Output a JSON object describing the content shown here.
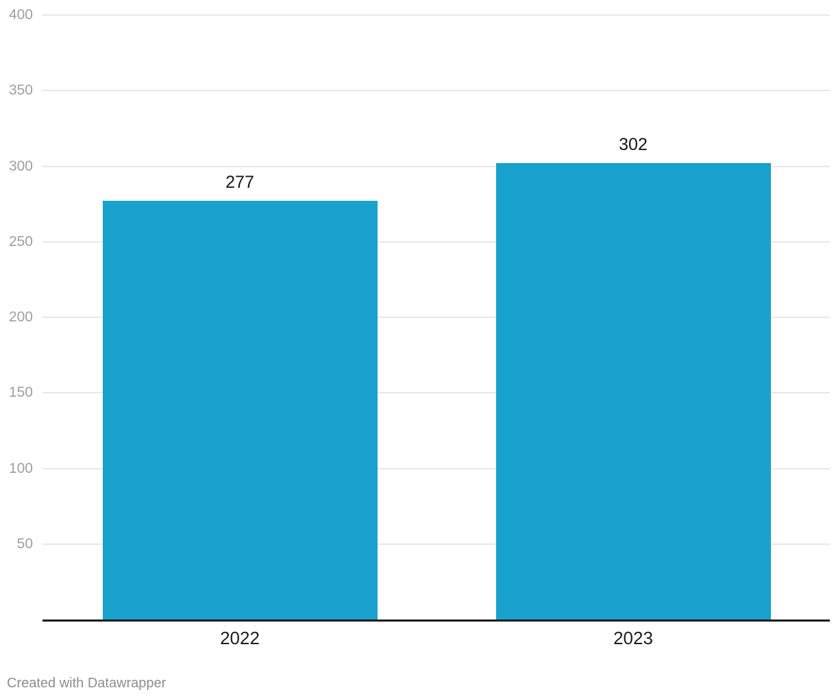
{
  "chart_data": {
    "type": "bar",
    "categories": [
      "2022",
      "2023"
    ],
    "values": [
      277,
      302
    ],
    "value_labels": [
      "277",
      "302"
    ],
    "title": "",
    "xlabel": "",
    "ylabel": "",
    "ylim": [
      0,
      400
    ],
    "yticks": [
      50,
      100,
      150,
      200,
      250,
      300,
      350,
      400
    ],
    "ytick_labels": [
      "50",
      "100",
      "150",
      "200",
      "250",
      "300",
      "350",
      "400"
    ],
    "grid": true,
    "legend": "none",
    "bar_color": "#18a1cd",
    "gridline_color": "#e7e7e7",
    "baseline_color": "#191919",
    "ytick_color": "#9e9e9e",
    "label_color": "#161616"
  },
  "footer": {
    "credit": "Created with Datawrapper"
  }
}
